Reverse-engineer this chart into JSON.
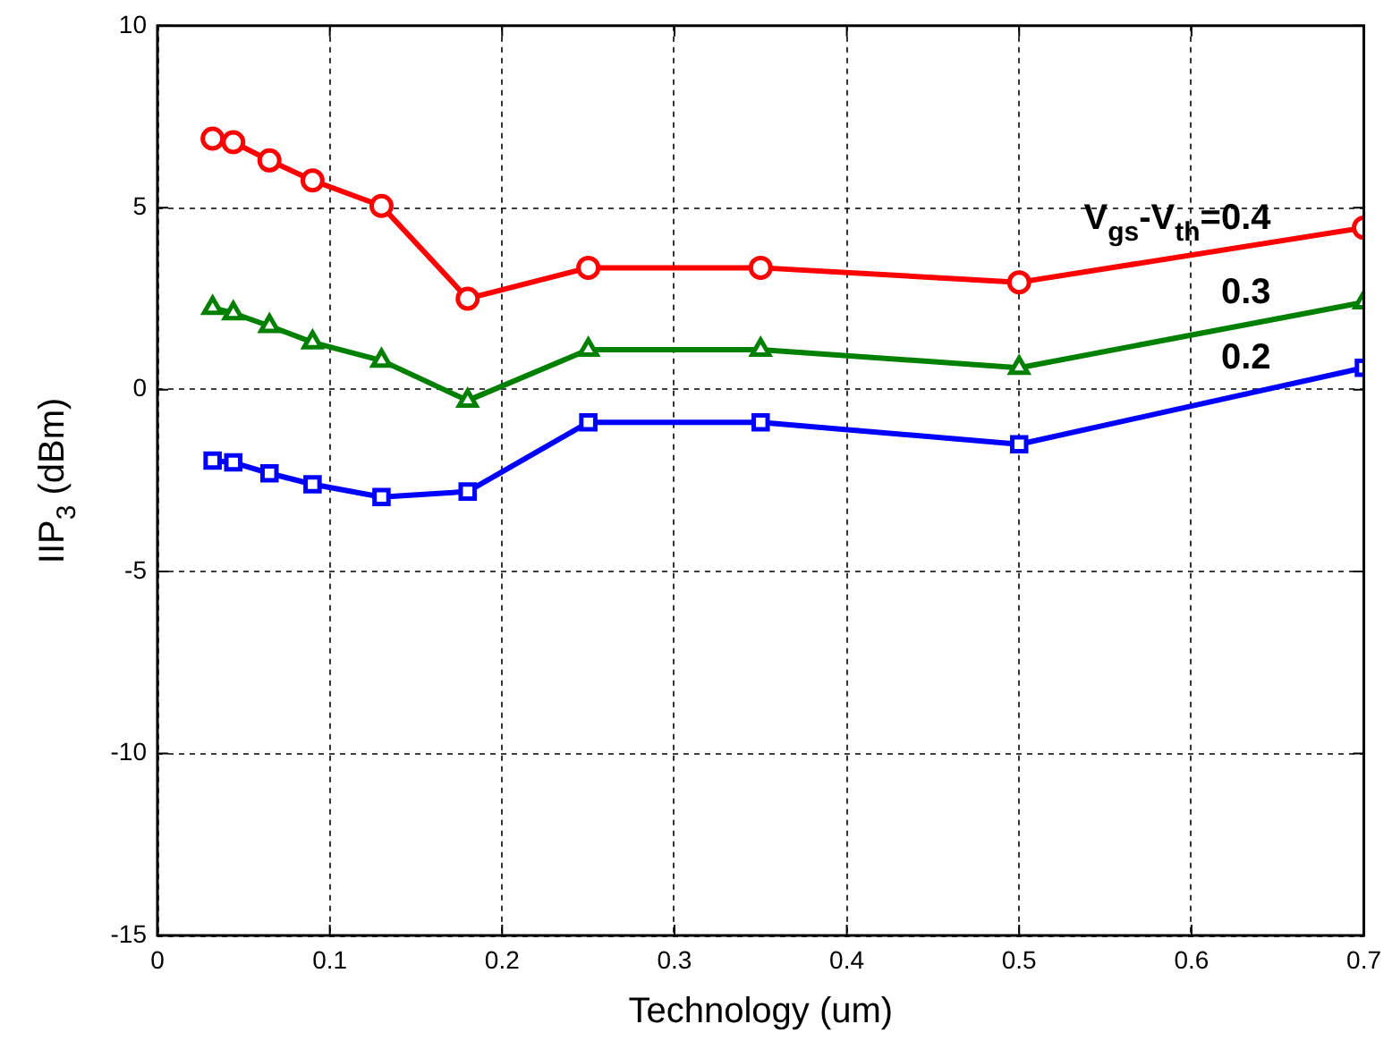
{
  "chart_data": {
    "type": "line",
    "xlabel": "Technology (um)",
    "ylabel": "IIP$_{3}$ (dBm)",
    "x": [
      0.032,
      0.044,
      0.065,
      0.09,
      0.13,
      0.18,
      0.25,
      0.35,
      0.5,
      0.7
    ],
    "series": [
      {
        "name": "V$_{gs}$-V$_{th}$=0.4",
        "color": "#ff0000",
        "marker": "circle",
        "values": [
          6.9,
          6.8,
          6.3,
          5.75,
          5.05,
          2.5,
          3.35,
          3.35,
          2.95,
          4.45
        ]
      },
      {
        "name": "0.3",
        "color": "#008000",
        "marker": "triangle",
        "values": [
          2.25,
          2.1,
          1.75,
          1.3,
          0.8,
          -0.3,
          1.1,
          1.1,
          0.6,
          2.4
        ]
      },
      {
        "name": "0.2",
        "color": "#0000ff",
        "marker": "square",
        "values": [
          -1.95,
          -2.0,
          -2.3,
          -2.6,
          -2.95,
          -2.8,
          -0.9,
          -0.9,
          -1.5,
          0.6
        ]
      }
    ],
    "xlim": [
      0,
      0.7
    ],
    "xticks": [
      0,
      0.1,
      0.2,
      0.3,
      0.4,
      0.5,
      0.6,
      0.7
    ],
    "ylim": [
      -15,
      10
    ],
    "yticks": [
      -15,
      -10,
      -5,
      0,
      5,
      10
    ],
    "grid": true,
    "legend": false,
    "line_style": "solid"
  }
}
